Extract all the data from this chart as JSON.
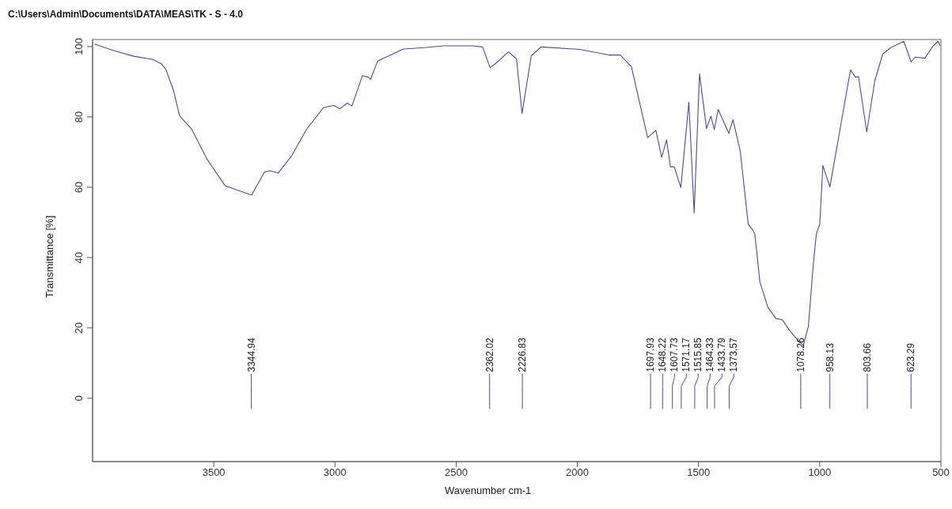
{
  "chart_data": {
    "type": "line",
    "title": "C:\\Users\\Admin\\Documents\\DATA\\MEAS\\TK - S - 4.0",
    "xlabel": "Wavenumber cm-1",
    "ylabel": "Transmittance [%]",
    "xlim": [
      4000,
      500
    ],
    "xticks": [
      3500,
      3000,
      2500,
      2000,
      1500,
      1000,
      500
    ],
    "ylim": [
      -18,
      102
    ],
    "yticks": [
      0,
      20,
      40,
      60,
      80,
      100
    ],
    "grid": false,
    "series": [
      {
        "color": "#4b4b9b",
        "x": [
          3992,
          3915,
          3828,
          3754,
          3716,
          3697,
          3666,
          3641,
          3591,
          3529,
          3454,
          3404,
          3344,
          3291,
          3267,
          3235,
          3179,
          3117,
          3048,
          3005,
          2980,
          2949,
          2930,
          2887,
          2862,
          2853,
          2824,
          2718,
          2630,
          2552,
          2431,
          2391,
          2360,
          2337,
          2284,
          2251,
          2228,
          2190,
          2150,
          1990,
          1870,
          1823,
          1777,
          1710,
          1676,
          1652,
          1632,
          1616,
          1600,
          1573,
          1540,
          1518,
          1496,
          1467,
          1449,
          1435,
          1419,
          1375,
          1358,
          1328,
          1295,
          1275,
          1268,
          1258,
          1247,
          1214,
          1181,
          1154,
          1127,
          1094,
          1068,
          1047,
          1027,
          1014,
          1000,
          987,
          958,
          873,
          853,
          840,
          806,
          773,
          740,
          707,
          653,
          623,
          606,
          566,
          532,
          512,
          503
        ],
        "values": [
          100.7,
          98.9,
          97.2,
          96.4,
          95.1,
          93.4,
          87.5,
          80.3,
          76.5,
          68.1,
          60.5,
          59.2,
          57.8,
          64.3,
          64.7,
          64.0,
          68.9,
          76.5,
          82.6,
          83.3,
          82.3,
          83.9,
          83.1,
          91.7,
          91.3,
          90.7,
          95.9,
          99.3,
          99.7,
          100.2,
          100.2,
          99.9,
          94.0,
          95.2,
          98.5,
          96.5,
          81.0,
          97.4,
          99.9,
          99.2,
          97.6,
          97.6,
          94.3,
          74.1,
          76.2,
          68.5,
          73.5,
          65.8,
          65.8,
          59.9,
          84.1,
          52.7,
          92.2,
          76.7,
          80.2,
          76.4,
          82.1,
          75.3,
          79.2,
          70.3,
          49.5,
          47.7,
          46.7,
          40.5,
          33.1,
          25.9,
          22.7,
          22.3,
          19.5,
          16.8,
          15.0,
          20.4,
          37.6,
          46.7,
          49.5,
          66.2,
          60.1,
          93.4,
          91.3,
          91.5,
          75.7,
          90.2,
          97.9,
          99.7,
          101.5,
          95.6,
          97.0,
          96.7,
          100.2,
          101.5,
          100.2
        ]
      }
    ],
    "ref_lines": [
      {
        "axis": "x",
        "value": 3344.94,
        "label": "3344.94",
        "color": "#4b4b9b"
      },
      {
        "axis": "x",
        "value": 2362.02,
        "label": "2362.02",
        "color": "#4b4b9b"
      },
      {
        "axis": "x",
        "value": 2226.83,
        "label": "2226.83",
        "color": "#4b4b9b"
      },
      {
        "axis": "x",
        "value": 1697.93,
        "label": "1697.93",
        "color": "#4b4b9b"
      },
      {
        "axis": "x",
        "value": 1648.22,
        "label": "1648.22",
        "color": "#4b4b9b"
      },
      {
        "axis": "x",
        "value": 1607.73,
        "label": "1607.73",
        "color": "#4b4b9b"
      },
      {
        "axis": "x",
        "value": 1571.17,
        "label": "1571.17",
        "color": "#4b4b9b"
      },
      {
        "axis": "x",
        "value": 1515.85,
        "label": "1515.85",
        "color": "#4b4b9b"
      },
      {
        "axis": "x",
        "value": 1464.33,
        "label": "1464.33",
        "color": "#4b4b9b"
      },
      {
        "axis": "x",
        "value": 1433.79,
        "label": "1433.79",
        "color": "#4b4b9b"
      },
      {
        "axis": "x",
        "value": 1373.57,
        "label": "1373.57",
        "color": "#4b4b9b"
      },
      {
        "axis": "x",
        "value": 1078.26,
        "label": "1078.26",
        "color": "#4b4b9b"
      },
      {
        "axis": "x",
        "value": 958.13,
        "label": "958.13",
        "color": "#4b4b9b"
      },
      {
        "axis": "x",
        "value": 803.66,
        "label": "803.66",
        "color": "#4b4b9b"
      },
      {
        "axis": "x",
        "value": 623.29,
        "label": "623.29",
        "color": "#4b4b9b"
      }
    ]
  }
}
